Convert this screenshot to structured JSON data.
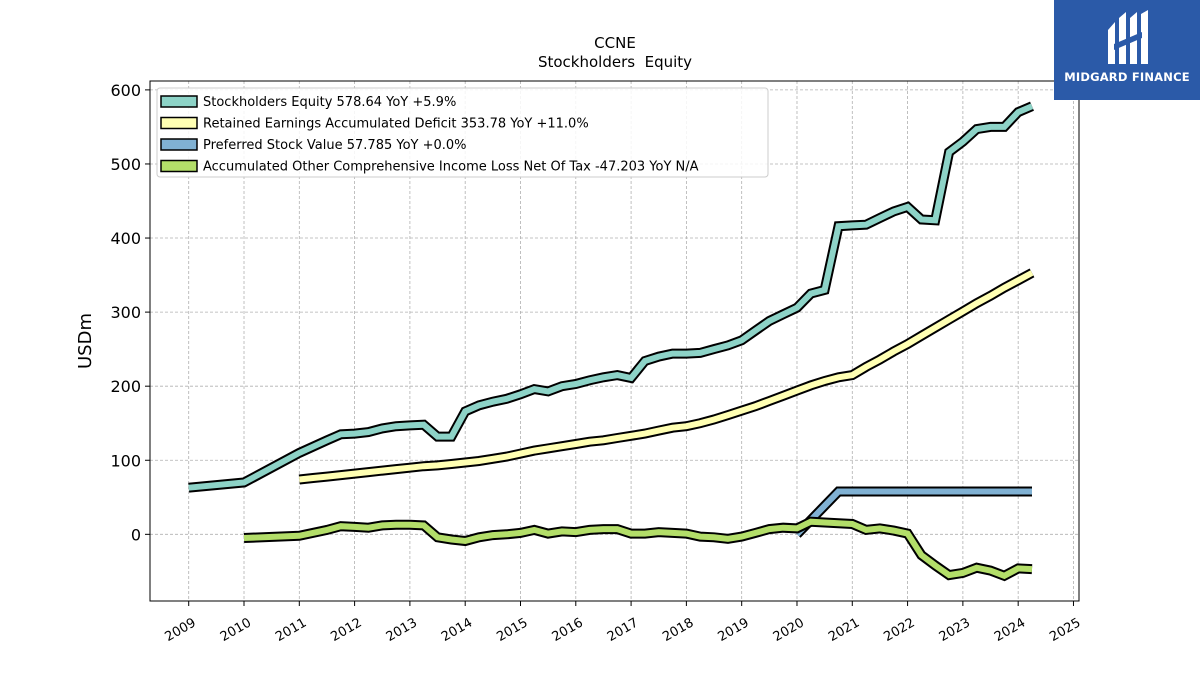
{
  "chart_data": {
    "type": "line",
    "title": "CCNE",
    "subtitle": "Stockholders  Equity",
    "ylabel": "USDm",
    "xlabel": "",
    "xlim": [
      2008.3,
      2025.1
    ],
    "ylim": [
      -90,
      612
    ],
    "yticks": [
      0,
      100,
      200,
      300,
      400,
      500,
      600
    ],
    "xticks": [
      2009,
      2010,
      2011,
      2012,
      2013,
      2014,
      2015,
      2016,
      2017,
      2018,
      2019,
      2020,
      2021,
      2022,
      2023,
      2024,
      2025
    ],
    "grid": true,
    "legend_position": "top-left",
    "series": [
      {
        "name": "Stockholders Equity  578.64 YoY +5.9%",
        "color": "#8dd3c7",
        "x": [
          2009.0,
          2010.0,
          2011.0,
          2011.5,
          2011.75,
          2012.0,
          2012.25,
          2012.5,
          2012.75,
          2013.0,
          2013.25,
          2013.5,
          2013.75,
          2014.0,
          2014.25,
          2014.5,
          2014.75,
          2015.0,
          2015.25,
          2015.5,
          2015.75,
          2016.0,
          2016.25,
          2016.5,
          2016.75,
          2017.0,
          2017.25,
          2017.5,
          2017.75,
          2018.0,
          2018.25,
          2018.5,
          2018.75,
          2019.0,
          2019.25,
          2019.5,
          2019.75,
          2020.0,
          2020.25,
          2020.5,
          2020.75,
          2021.0,
          2021.25,
          2021.5,
          2021.75,
          2022.0,
          2022.25,
          2022.5,
          2022.75,
          2023.0,
          2023.25,
          2023.5,
          2023.75,
          2024.0,
          2024.25
        ],
        "values": [
          63,
          70,
          110,
          127,
          135,
          136,
          138,
          143,
          146,
          147,
          148,
          132,
          132,
          166,
          174,
          179,
          183,
          189,
          196,
          193,
          200,
          203,
          208,
          212,
          215,
          211,
          234,
          240,
          244,
          244,
          245,
          250,
          255,
          262,
          275,
          288,
          297,
          306,
          325,
          330,
          416,
          417,
          418,
          427,
          436,
          442,
          425,
          424,
          516,
          530,
          547,
          550,
          550,
          570,
          578
        ]
      },
      {
        "name": "Retained Earnings Accumulated Deficit  353.78 YoY +11.0%",
        "color": "#ffffb3",
        "x": [
          2011.0,
          2011.25,
          2011.5,
          2011.75,
          2012.0,
          2012.25,
          2012.5,
          2012.75,
          2013.0,
          2013.25,
          2013.5,
          2013.75,
          2014.0,
          2014.25,
          2014.5,
          2014.75,
          2015.0,
          2015.25,
          2015.5,
          2015.75,
          2016.0,
          2016.25,
          2016.5,
          2016.75,
          2017.0,
          2017.25,
          2017.5,
          2017.75,
          2018.0,
          2018.25,
          2018.5,
          2018.75,
          2019.0,
          2019.25,
          2019.5,
          2019.75,
          2020.0,
          2020.25,
          2020.5,
          2020.75,
          2021.0,
          2021.25,
          2021.5,
          2021.75,
          2022.0,
          2022.25,
          2022.5,
          2022.75,
          2023.0,
          2023.25,
          2023.5,
          2023.75,
          2024.0,
          2024.25
        ],
        "values": [
          74,
          76,
          78,
          80,
          82,
          84,
          86,
          88,
          90,
          92,
          93,
          95,
          97,
          99,
          102,
          105,
          109,
          113,
          116,
          119,
          122,
          125,
          127,
          130,
          133,
          136,
          140,
          144,
          146,
          150,
          155,
          161,
          167,
          173,
          180,
          187,
          194,
          201,
          207,
          212,
          215,
          226,
          236,
          247,
          257,
          268,
          279,
          290,
          301,
          312,
          322,
          333,
          343,
          353
        ]
      },
      {
        "name": "Preferred Stock Value  57.785 YoY +0.0%",
        "color": "#80b1d3",
        "x": [
          2020.0,
          2020.75,
          2024.25
        ],
        "values": [
          0,
          57.785,
          57.785
        ]
      },
      {
        "name": "Accumulated Other Comprehensive Income Loss Net Of Tax  -47.203 YoY N/A",
        "color": "#b3de69",
        "x": [
          2010.0,
          2011.0,
          2011.5,
          2011.75,
          2012.0,
          2012.25,
          2012.5,
          2012.75,
          2013.0,
          2013.25,
          2013.5,
          2013.75,
          2014.0,
          2014.25,
          2014.5,
          2014.75,
          2015.0,
          2015.25,
          2015.5,
          2015.75,
          2016.0,
          2016.25,
          2016.5,
          2016.75,
          2017.0,
          2017.25,
          2017.5,
          2017.75,
          2018.0,
          2018.25,
          2018.5,
          2018.75,
          2019.0,
          2019.25,
          2019.5,
          2019.75,
          2020.0,
          2020.25,
          2020.5,
          2020.75,
          2021.0,
          2021.25,
          2021.5,
          2021.75,
          2022.0,
          2022.25,
          2022.5,
          2022.75,
          2023.0,
          2023.25,
          2023.5,
          2023.75,
          2024.0,
          2024.25
        ],
        "values": [
          -5,
          -2,
          6,
          11,
          10,
          9,
          12,
          13,
          13,
          12,
          -4,
          -7,
          -9,
          -4,
          -1,
          0,
          2,
          6,
          1,
          4,
          3,
          6,
          7,
          7,
          1,
          1,
          3,
          2,
          1,
          -3,
          -4,
          -6,
          -3,
          2,
          7,
          9,
          8,
          17,
          16,
          15,
          14,
          6,
          8,
          5,
          1,
          -28,
          -42,
          -55,
          -52,
          -45,
          -49,
          -56,
          -46,
          -47
        ]
      }
    ]
  },
  "brand": {
    "name": "MIDGARD FINANCE",
    "background": "#2b5aa8"
  }
}
